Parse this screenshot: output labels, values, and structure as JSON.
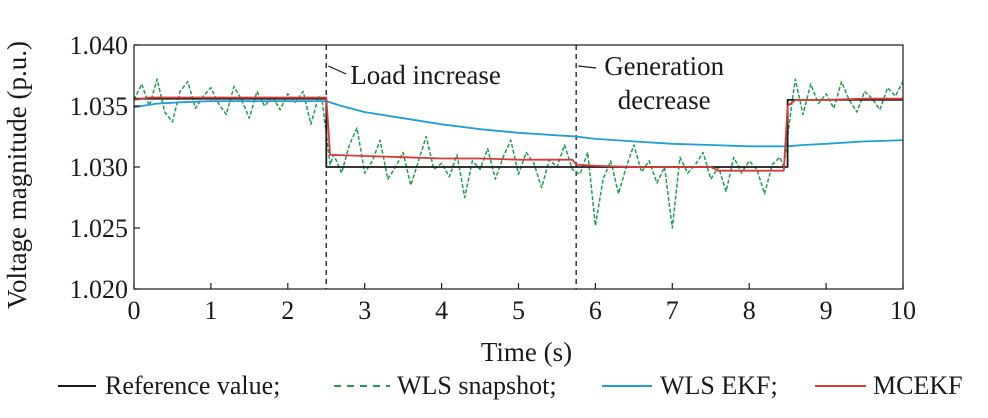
{
  "chart_data": {
    "type": "line",
    "xlabel": "Time (s)",
    "ylabel": "Voltage magnitude (p.u.)",
    "xlim": [
      0,
      10
    ],
    "ylim": [
      1.02,
      1.04
    ],
    "x_ticks": [
      0,
      1,
      2,
      3,
      4,
      5,
      6,
      7,
      8,
      9,
      10
    ],
    "x_tick_labels": [
      "0",
      "1",
      "2",
      "3",
      "4",
      "5",
      "6",
      "7",
      "8",
      "9",
      "10"
    ],
    "y_ticks": [
      1.02,
      1.025,
      1.03,
      1.035,
      1.04
    ],
    "y_tick_labels": [
      "1.020",
      "1.025",
      "1.030",
      "1.035",
      "1.040"
    ],
    "grid": false,
    "legend_position": "bottom",
    "events": [
      {
        "x": 2.5,
        "lines": [
          "Load increase"
        ]
      },
      {
        "x": 5.75,
        "lines": [
          "Generation",
          "decrease"
        ]
      }
    ],
    "series": [
      {
        "name": "Reference value",
        "color": "#1a1a1a",
        "style": "solid",
        "x": [
          0,
          2.5,
          2.5,
          5.75,
          5.75,
          8.5,
          8.5,
          10
        ],
        "values": [
          1.0356,
          1.0356,
          1.03,
          1.03,
          1.03,
          1.03,
          1.0355,
          1.0355
        ]
      },
      {
        "name": "WLS snapshot",
        "color": "#1aa04f",
        "style": "dashed",
        "x": [
          0,
          0.1,
          0.2,
          0.3,
          0.4,
          0.5,
          0.6,
          0.7,
          0.8,
          0.9,
          1.0,
          1.1,
          1.2,
          1.3,
          1.4,
          1.5,
          1.6,
          1.7,
          1.8,
          1.9,
          2.0,
          2.1,
          2.2,
          2.3,
          2.4,
          2.45,
          2.55,
          2.6,
          2.7,
          2.8,
          2.9,
          3.0,
          3.1,
          3.2,
          3.3,
          3.4,
          3.5,
          3.6,
          3.7,
          3.8,
          3.9,
          4.0,
          4.1,
          4.2,
          4.3,
          4.4,
          4.5,
          4.6,
          4.7,
          4.8,
          4.9,
          5.0,
          5.1,
          5.2,
          5.3,
          5.4,
          5.5,
          5.6,
          5.7,
          5.8,
          5.9,
          6.0,
          6.1,
          6.2,
          6.3,
          6.4,
          6.5,
          6.6,
          6.7,
          6.8,
          6.9,
          7.0,
          7.1,
          7.2,
          7.3,
          7.4,
          7.5,
          7.6,
          7.7,
          7.8,
          7.9,
          8.0,
          8.1,
          8.2,
          8.3,
          8.4,
          8.45,
          8.55,
          8.6,
          8.7,
          8.8,
          8.9,
          9.0,
          9.1,
          9.2,
          9.3,
          9.4,
          9.5,
          9.6,
          9.7,
          9.8,
          9.9,
          10.0
        ],
        "values": [
          1.0355,
          1.0368,
          1.035,
          1.0372,
          1.0345,
          1.0337,
          1.0362,
          1.037,
          1.0348,
          1.0358,
          1.0365,
          1.0352,
          1.0343,
          1.0366,
          1.0355,
          1.034,
          1.0362,
          1.035,
          1.0358,
          1.0347,
          1.036,
          1.0353,
          1.0362,
          1.0335,
          1.0358,
          1.0353,
          1.0302,
          1.031,
          1.0295,
          1.0318,
          1.0332,
          1.0295,
          1.0305,
          1.0322,
          1.029,
          1.03,
          1.0312,
          1.0285,
          1.0305,
          1.0325,
          1.0298,
          1.0303,
          1.0292,
          1.031,
          1.0275,
          1.0305,
          1.0298,
          1.0315,
          1.029,
          1.0308,
          1.0322,
          1.0294,
          1.0312,
          1.0303,
          1.0283,
          1.0306,
          1.03,
          1.0318,
          1.0298,
          1.0294,
          1.0312,
          1.0252,
          1.029,
          1.0305,
          1.0278,
          1.03,
          1.0318,
          1.0296,
          1.0305,
          1.0287,
          1.03,
          1.025,
          1.0308,
          1.0295,
          1.0302,
          1.0312,
          1.029,
          1.03,
          1.028,
          1.0308,
          1.0295,
          1.0305,
          1.0298,
          1.0278,
          1.0302,
          1.0308,
          1.03,
          1.035,
          1.0372,
          1.0343,
          1.0368,
          1.0352,
          1.036,
          1.0348,
          1.037,
          1.0355,
          1.0345,
          1.0362,
          1.0356,
          1.0347,
          1.0365,
          1.0358,
          1.037
        ]
      },
      {
        "name": "WLS EKF",
        "color": "#1e9fd8",
        "style": "solid",
        "x": [
          0,
          0.3,
          0.6,
          1.0,
          1.5,
          2.0,
          2.5,
          2.7,
          3.0,
          3.5,
          4.0,
          4.5,
          5.0,
          5.5,
          5.75,
          6.0,
          6.5,
          7.0,
          7.5,
          8.0,
          8.5,
          8.7,
          9.0,
          9.5,
          10.0
        ],
        "values": [
          1.0349,
          1.0352,
          1.0353,
          1.0354,
          1.0354,
          1.0354,
          1.0354,
          1.035,
          1.0345,
          1.034,
          1.0335,
          1.0331,
          1.0328,
          1.0326,
          1.0325,
          1.0323,
          1.0321,
          1.0319,
          1.0318,
          1.0317,
          1.0317,
          1.0318,
          1.0319,
          1.0321,
          1.0322
        ]
      },
      {
        "name": "MCEKF",
        "color": "#d93a3a",
        "style": "solid",
        "x": [
          0,
          0.2,
          0.5,
          1.0,
          1.5,
          2.0,
          2.45,
          2.5,
          2.55,
          3.0,
          3.5,
          4.0,
          4.5,
          5.0,
          5.5,
          5.7,
          5.75,
          6.0,
          6.5,
          7.0,
          7.5,
          7.6,
          8.0,
          8.45,
          8.5,
          8.6,
          9.0,
          9.5,
          10.0
        ],
        "values": [
          1.0355,
          1.0357,
          1.0357,
          1.0357,
          1.0357,
          1.0357,
          1.0357,
          1.0357,
          1.031,
          1.0309,
          1.0308,
          1.0307,
          1.0307,
          1.0306,
          1.0306,
          1.0306,
          1.0302,
          1.0301,
          1.03,
          1.03,
          1.03,
          1.0297,
          1.0297,
          1.0297,
          1.035,
          1.0355,
          1.0355,
          1.0356,
          1.0356
        ]
      }
    ]
  }
}
